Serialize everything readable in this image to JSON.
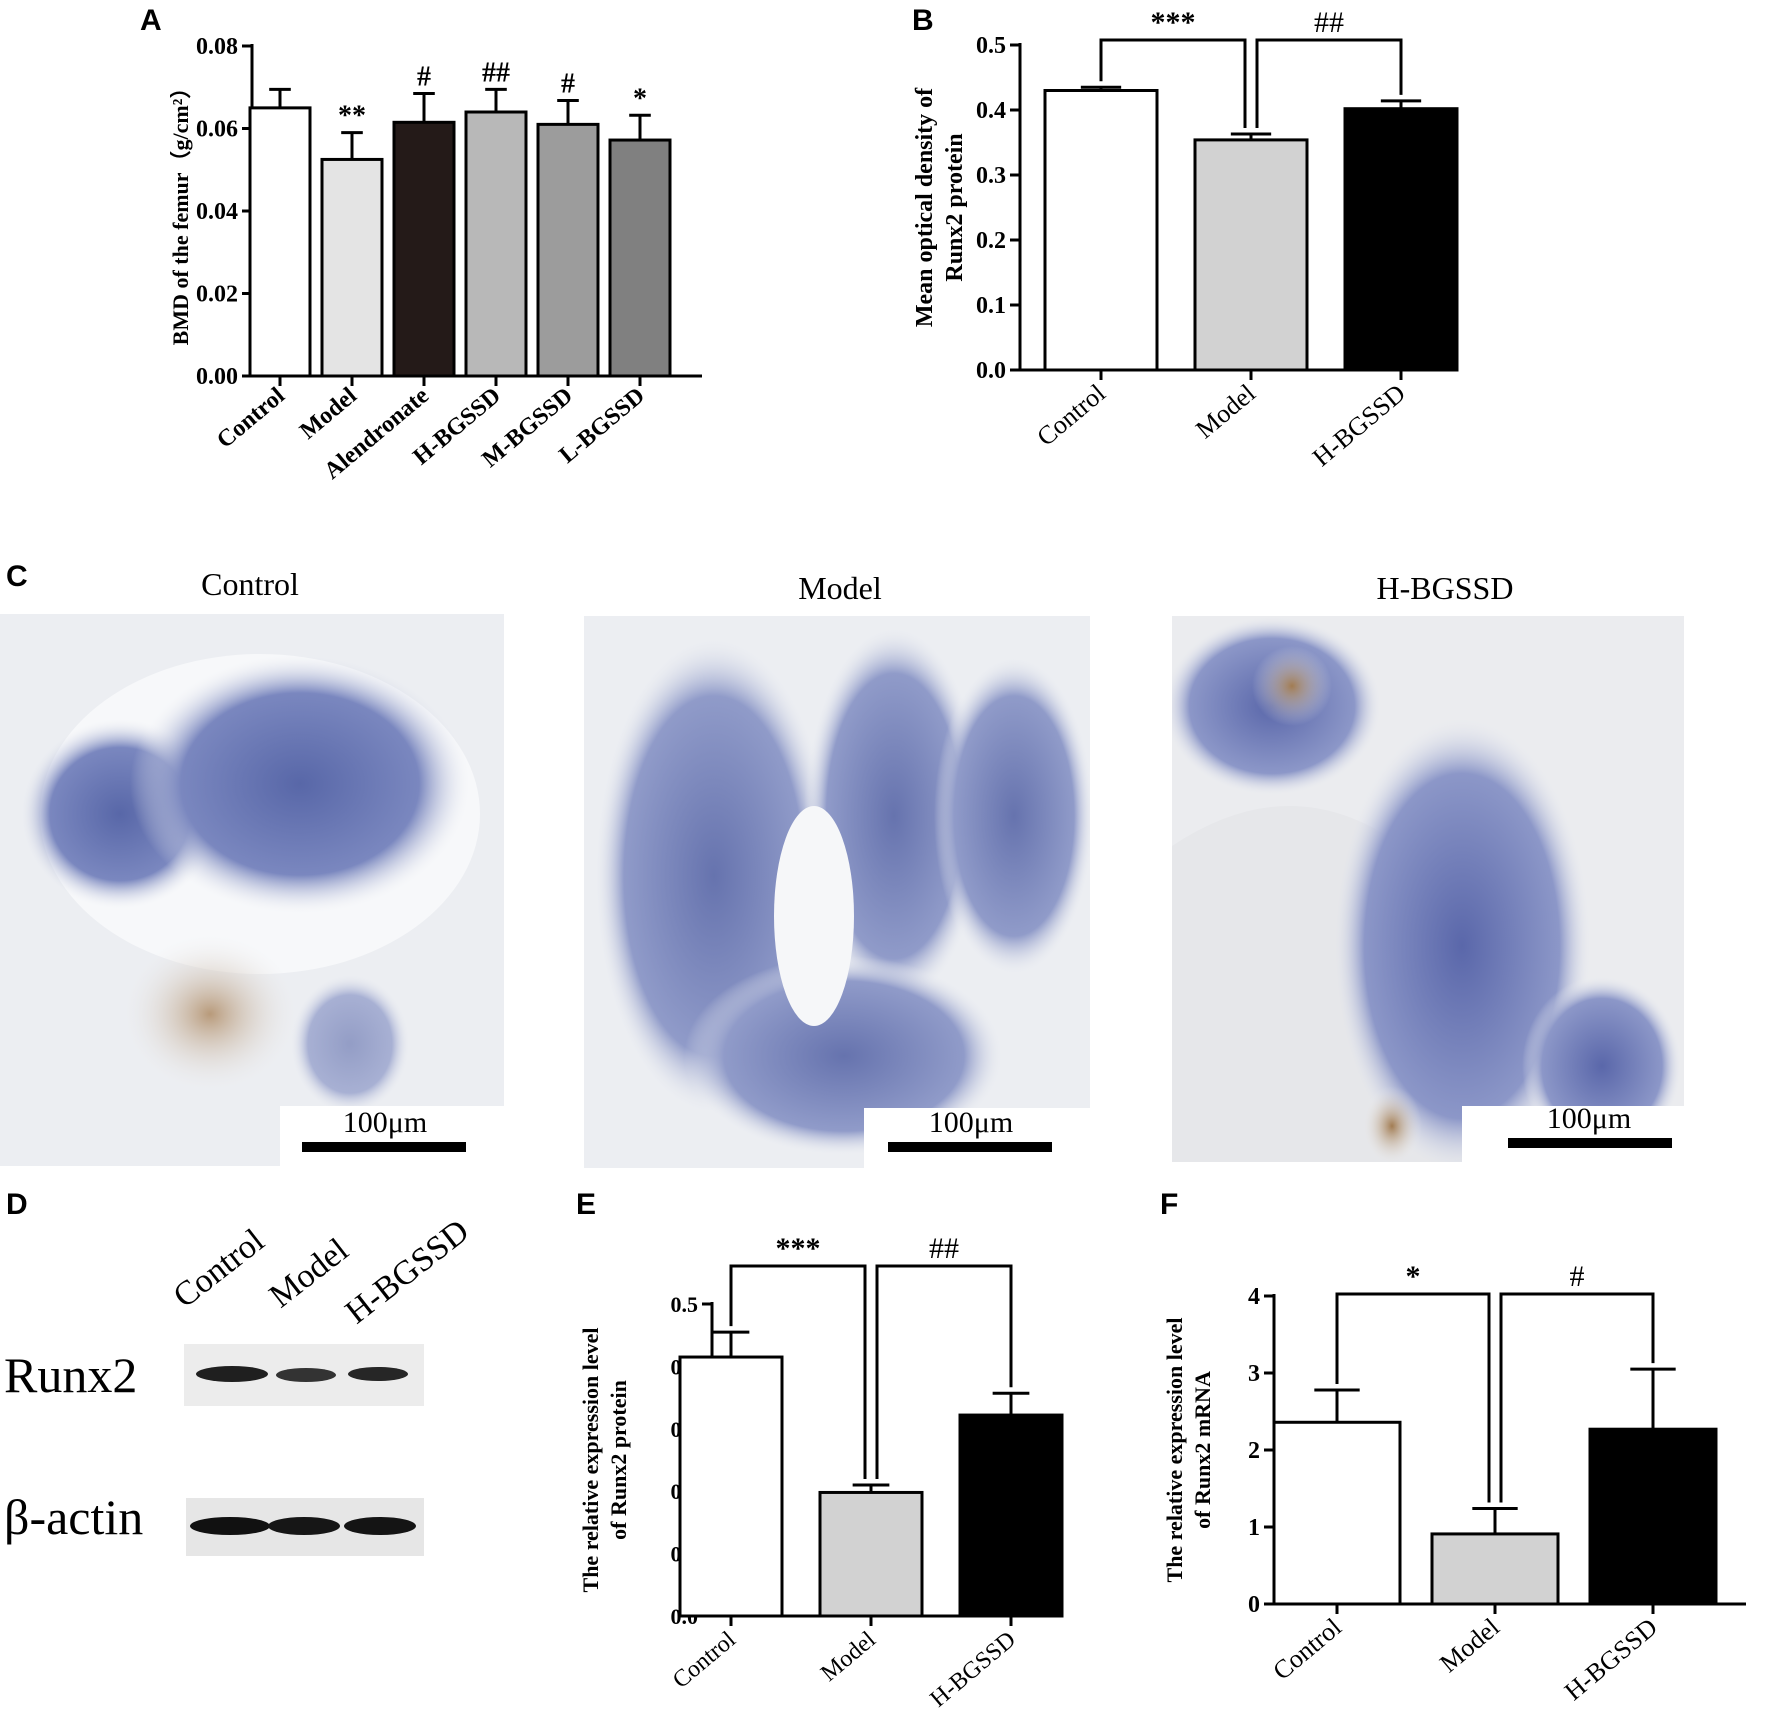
{
  "panels": {
    "A": "A",
    "B": "B",
    "C": "C",
    "D": "D",
    "E": "E",
    "F": "F"
  },
  "chart_data": [
    {
      "id": "A",
      "type": "bar",
      "categories": [
        "Control",
        "Model",
        "Alendronate",
        "H-BGSSD",
        "M-BGSSD",
        "L-BGSSD"
      ],
      "values": [
        0.065,
        0.0525,
        0.0615,
        0.064,
        0.061,
        0.0572
      ],
      "errors": [
        0.0045,
        0.0065,
        0.007,
        0.0055,
        0.0058,
        0.006
      ],
      "annotations": [
        "",
        "**",
        "#",
        "##",
        "#",
        "*"
      ],
      "colors": [
        "#ffffff",
        "#e4e4e4",
        "#241a18",
        "#b8b8b8",
        "#9c9c9c",
        "#808080"
      ],
      "title": "",
      "xlabel": "",
      "ylabel": "BMD of the femur（g/cm²）",
      "ylim": [
        0,
        0.08
      ],
      "yticks": [
        "0.00",
        "0.02",
        "0.04",
        "0.06",
        "0.08"
      ]
    },
    {
      "id": "B",
      "type": "bar",
      "categories": [
        "Control",
        "Model",
        "H-BGSSD"
      ],
      "values": [
        0.43,
        0.354,
        0.402
      ],
      "errors": [
        0.005,
        0.009,
        0.012
      ],
      "colors": [
        "#ffffff",
        "#d2d2d2",
        "#000000"
      ],
      "significance": [
        {
          "from": 0,
          "to": 1,
          "label": "***"
        },
        {
          "from": 1,
          "to": 2,
          "label": "##"
        }
      ],
      "title": "",
      "ylabel": [
        "Mean optical density of",
        "Runx2 protein"
      ],
      "ylim": [
        0,
        0.5
      ],
      "yticks": [
        "0.0",
        "0.1",
        "0.2",
        "0.3",
        "0.4",
        "0.5"
      ]
    },
    {
      "id": "E",
      "type": "bar",
      "categories": [
        "Control",
        "Model",
        "H-BGSSD"
      ],
      "values": [
        0.415,
        0.198,
        0.322
      ],
      "errors": [
        0.04,
        0.012,
        0.035
      ],
      "colors": [
        "#ffffff",
        "#d2d2d2",
        "#000000"
      ],
      "significance": [
        {
          "from": 0,
          "to": 1,
          "label": "***"
        },
        {
          "from": 1,
          "to": 2,
          "label": "##"
        }
      ],
      "title": "",
      "ylabel": [
        "The relative expression level",
        "of Runx2 protein"
      ],
      "ylim": [
        0,
        0.5
      ],
      "yticks": [
        "0.0",
        "0.1",
        "0.2",
        "0.3",
        "0.4",
        "0.5"
      ]
    },
    {
      "id": "F",
      "type": "bar",
      "categories": [
        "Control",
        "Model",
        "H-BGSSD"
      ],
      "values": [
        2.36,
        0.91,
        2.27
      ],
      "errors": [
        0.42,
        0.33,
        0.78
      ],
      "colors": [
        "#ffffff",
        "#d2d2d2",
        "#000000"
      ],
      "significance": [
        {
          "from": 0,
          "to": 1,
          "label": "*"
        },
        {
          "from": 1,
          "to": 2,
          "label": "#"
        }
      ],
      "title": "",
      "ylabel": [
        "The relative expression level",
        "of Runx2 mRNA"
      ],
      "ylim": [
        0,
        4
      ],
      "yticks": [
        "0",
        "1",
        "2",
        "3",
        "4"
      ]
    }
  ],
  "micrographs": [
    {
      "title": "Control",
      "scale_label": "100μm"
    },
    {
      "title": "Model",
      "scale_label": "100μm"
    },
    {
      "title": "H-BGSSD",
      "scale_label": "100μm"
    }
  ],
  "western_blot": {
    "lanes": [
      "Control",
      "Model",
      "H-BGSSD"
    ],
    "rows": [
      "Runx2",
      "β-actin"
    ]
  }
}
